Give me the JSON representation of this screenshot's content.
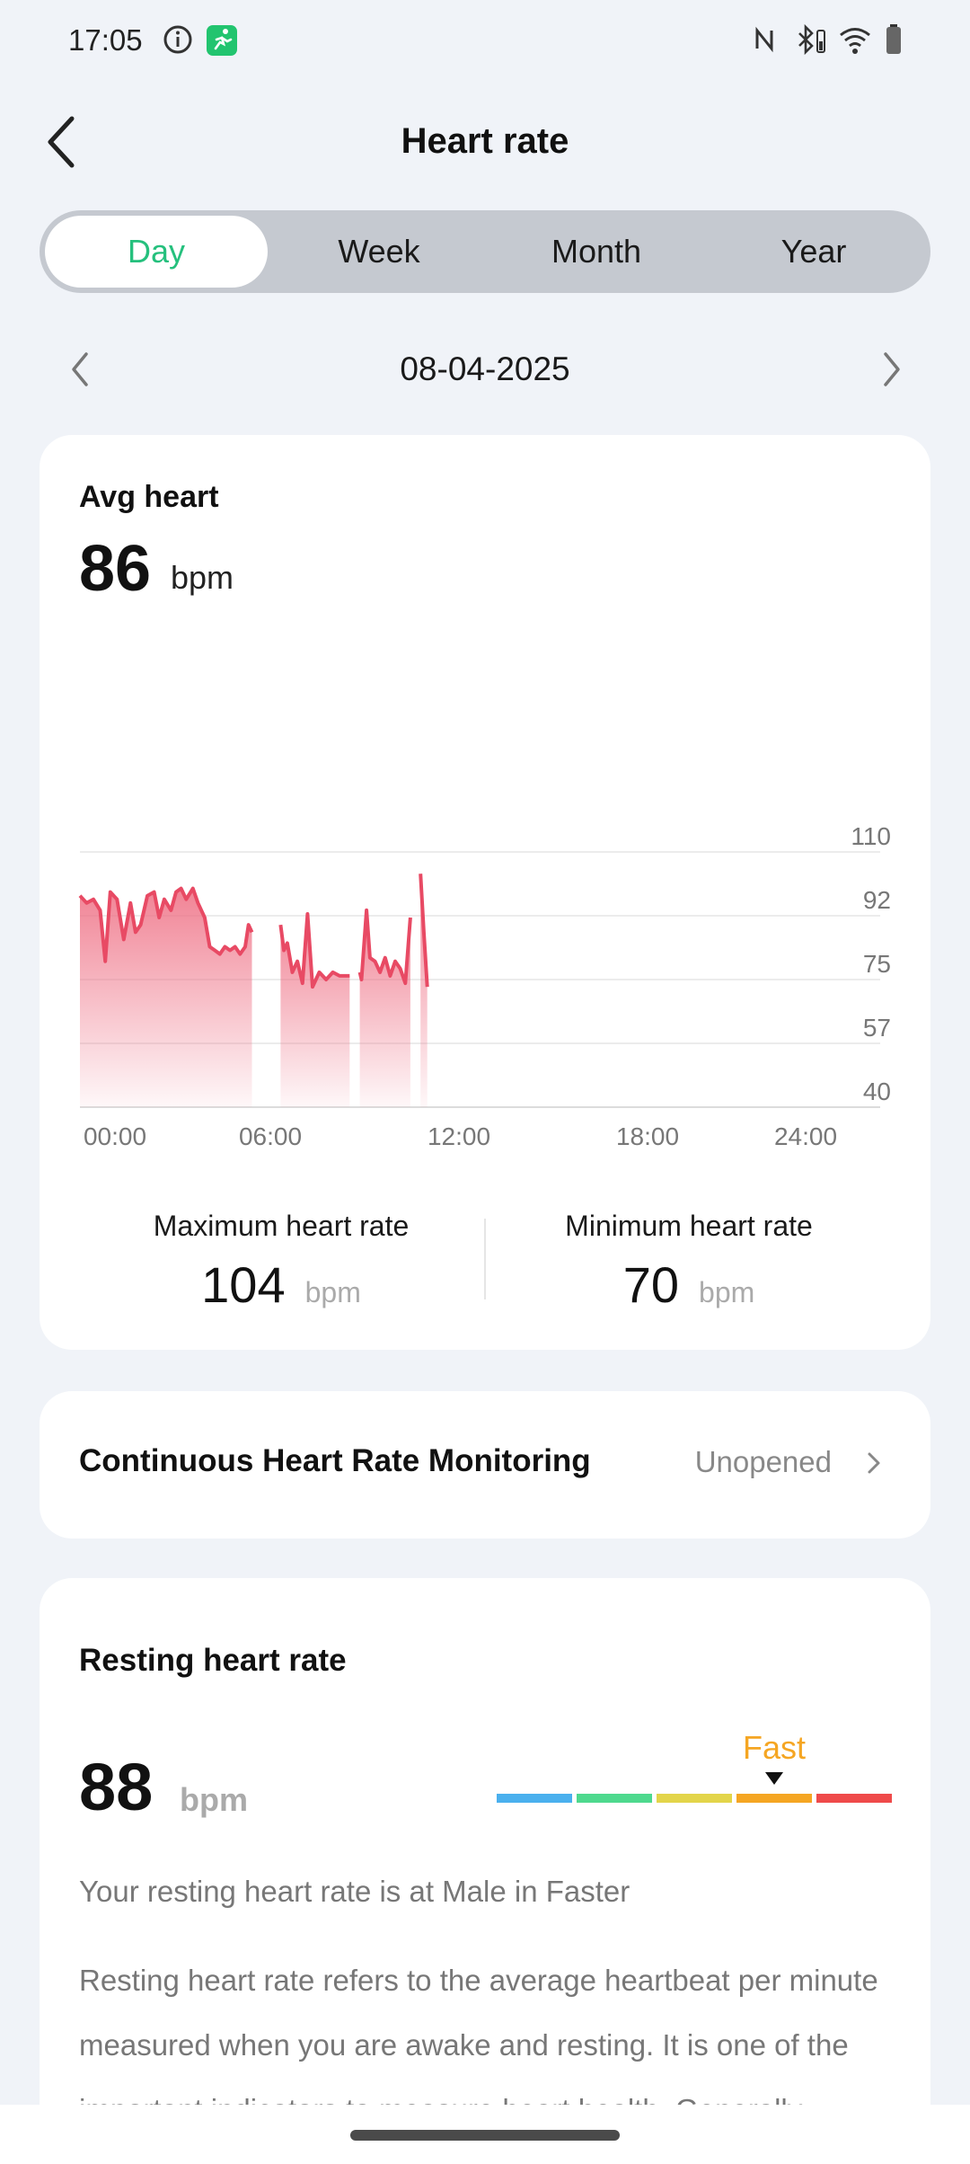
{
  "status_bar": {
    "time": "17:05",
    "icons": [
      "info-icon",
      "running-app-icon",
      "nfc-icon",
      "bluetooth-icon",
      "wifi-icon",
      "battery-icon"
    ]
  },
  "header": {
    "title": "Heart rate"
  },
  "tabs": [
    {
      "label": "Day",
      "active": true
    },
    {
      "label": "Week",
      "active": false
    },
    {
      "label": "Month",
      "active": false
    },
    {
      "label": "Year",
      "active": false
    }
  ],
  "date_nav": {
    "date": "08-04-2025"
  },
  "avg_card": {
    "title": "Avg heart",
    "value": "86",
    "unit": "bpm",
    "max_label": "Maximum heart rate",
    "max_value": "104",
    "max_unit": "bpm",
    "min_label": "Minimum heart rate",
    "min_value": "70",
    "min_unit": "bpm"
  },
  "chart_data": {
    "type": "area",
    "ylim": [
      40,
      110
    ],
    "y_ticks": [
      "110",
      "92",
      "75",
      "57",
      "40"
    ],
    "x_ticks": [
      "00:00",
      "06:00",
      "12:00",
      "18:00",
      "24:00"
    ],
    "xlim_hours": [
      0,
      24
    ],
    "grid": true,
    "color": "#e84a64",
    "segments": [
      {
        "x": [
          0.0,
          0.2,
          0.4,
          0.6,
          0.75,
          0.9,
          1.1,
          1.3,
          1.5,
          1.65,
          1.8,
          2.0,
          2.2,
          2.35,
          2.5,
          2.7,
          2.85,
          3.0,
          3.15,
          3.35,
          3.5,
          3.7,
          3.85,
          4.0,
          4.15,
          4.3,
          4.45,
          4.6,
          4.75,
          4.9,
          5.0,
          5.1
        ],
        "y": [
          98,
          96,
          97,
          94,
          80,
          99,
          97,
          86,
          96,
          88,
          90,
          98,
          99,
          92,
          97,
          94,
          99,
          100,
          97,
          100,
          96,
          92,
          84,
          83,
          82,
          84,
          83,
          84,
          82,
          84,
          90,
          88
        ]
      },
      {
        "x": [
          5.95,
          6.05,
          6.15,
          6.3,
          6.45,
          6.6,
          6.75,
          6.9,
          7.1,
          7.3,
          7.5,
          7.7,
          7.9,
          8.0
        ],
        "y": [
          90,
          83,
          85,
          77,
          80,
          74,
          93,
          73,
          77,
          75,
          77,
          76,
          76,
          76
        ]
      },
      {
        "x": [
          8.3,
          8.35,
          8.5,
          8.6,
          8.75,
          8.9,
          9.05,
          9.2,
          9.35,
          9.5,
          9.65,
          9.8
        ],
        "y": [
          77,
          75,
          94,
          81,
          80,
          77,
          81,
          76,
          80,
          78,
          74,
          92
        ]
      },
      {
        "x": [
          10.1,
          10.2,
          10.3
        ],
        "y": [
          104,
          88,
          73
        ]
      }
    ]
  },
  "monitor_card": {
    "label": "Continuous Heart Rate Monitoring",
    "status": "Unopened"
  },
  "resting_card": {
    "title": "Resting heart rate",
    "value": "88",
    "unit": "bpm",
    "level": "Fast",
    "level_index": 3,
    "scale_colors": [
      "#4ab0ee",
      "#4ed98e",
      "#e3d54a",
      "#f5a623",
      "#ef4a4a"
    ],
    "note": "Your resting heart rate is at Male in Faster",
    "description": "Resting heart rate refers to the average heartbeat per minute measured when you are awake and resting. It is one of the important indicators to measure heart health. Generally"
  }
}
